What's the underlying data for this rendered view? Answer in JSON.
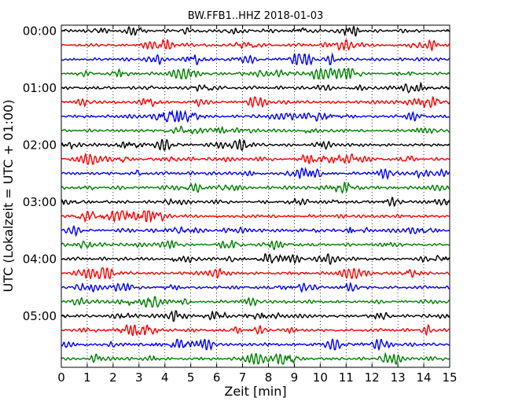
{
  "chart_data": {
    "type": "line",
    "title": "BW.FFB1..HHZ 2018-01-03",
    "xlabel": "Zeit  [min]",
    "ylabel": "UTC (Lokalzeit = UTC + 01:00)",
    "xlim": [
      0,
      15
    ],
    "x_ticks": [
      "0",
      "1",
      "2",
      "3",
      "4",
      "5",
      "6",
      "7",
      "8",
      "9",
      "10",
      "11",
      "12",
      "13",
      "14",
      "15"
    ],
    "y_tick_labels": [
      "00:00",
      "01:00",
      "02:00",
      "03:00",
      "04:00",
      "05:00"
    ],
    "traces_per_hour": 4,
    "trace_count": 24,
    "trace_minutes": 15,
    "colors": [
      "#000000",
      "#ff0000",
      "#0000ff",
      "#008000"
    ],
    "grid": "vertical dotted"
  }
}
